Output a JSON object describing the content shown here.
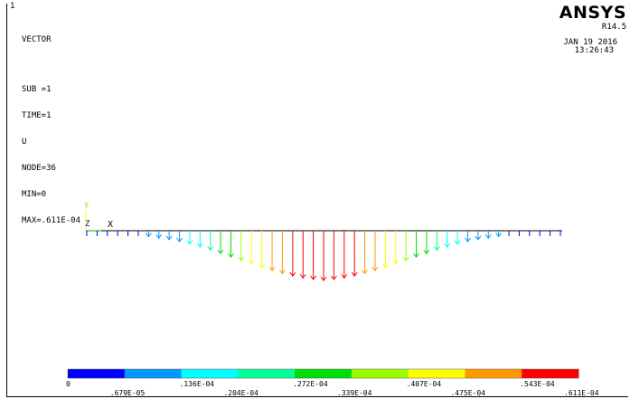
{
  "window_number": "1",
  "plot_info": {
    "type": "VECTOR",
    "sub": "SUB =1",
    "time": "TIME=1",
    "item": "U",
    "node": "NODE=36",
    "min": "MIN=0",
    "max": "MAX=.611E-04"
  },
  "brand": {
    "logo": "ANSYS",
    "release": "R14.5",
    "date": "JAN 19 2016",
    "time": "13:26:43"
  },
  "axes": {
    "y_label": "Y",
    "z_label": "Z",
    "x_label": "X"
  },
  "legend": {
    "colors": [
      "#0000ff",
      "#0099ff",
      "#00ffff",
      "#00ff99",
      "#00dd00",
      "#99ff00",
      "#ffff00",
      "#ff9900",
      "#ff0000"
    ],
    "top_labels": [
      "0",
      ".136E-04",
      ".272E-04",
      ".407E-04",
      ".543E-04"
    ],
    "bottom_labels": [
      ".679E-05",
      ".204E-04",
      ".339E-04",
      ".475E-04",
      ".611E-04"
    ]
  },
  "vectors": {
    "max_value": 6.11e-05,
    "values": [
      0,
      0.02,
      0.04,
      0.06,
      0.08,
      0.1,
      0.12,
      0.15,
      0.18,
      0.22,
      0.27,
      0.33,
      0.39,
      0.46,
      0.53,
      0.6,
      0.67,
      0.74,
      0.8,
      0.86,
      0.91,
      0.95,
      0.98,
      1.0,
      0.98,
      0.95,
      0.91,
      0.86,
      0.8,
      0.74,
      0.67,
      0.6,
      0.53,
      0.46,
      0.39,
      0.33,
      0.27,
      0.22,
      0.18,
      0.15,
      0.12,
      0.1,
      0.08,
      0.06,
      0.04,
      0.02,
      0
    ]
  }
}
